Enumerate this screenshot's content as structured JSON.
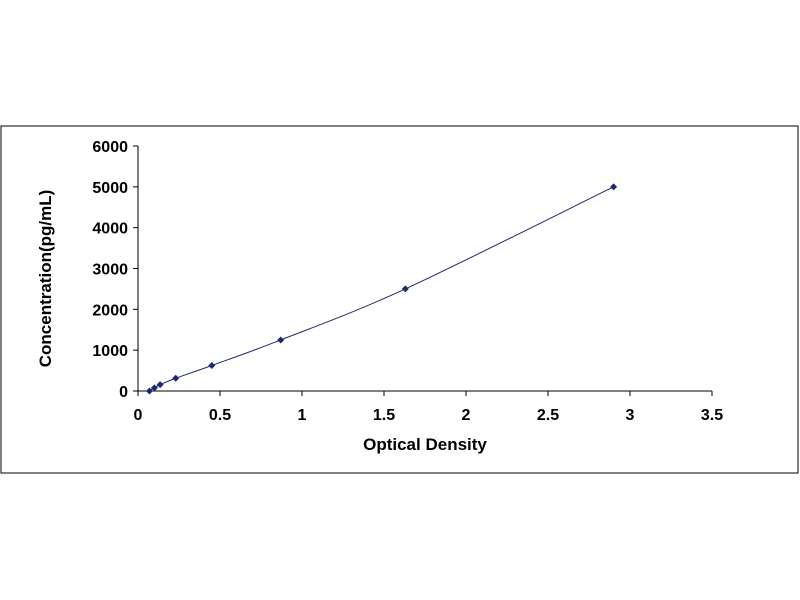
{
  "chart_data": {
    "type": "scatter",
    "title": "",
    "xlabel": "Optical Density",
    "ylabel": "Concentration(pg/mL)",
    "xlim": [
      0,
      3.5
    ],
    "ylim": [
      0,
      6000
    ],
    "x_ticks": [
      "0",
      "0.5",
      "1",
      "1.5",
      "2",
      "2.5",
      "3",
      "3.5"
    ],
    "y_ticks": [
      "0",
      "1000",
      "2000",
      "3000",
      "4000",
      "5000",
      "6000"
    ],
    "grid": false,
    "legend": "none",
    "marker": "diamond",
    "smooth_line": true,
    "series": [
      {
        "x": [
          0.07,
          0.1,
          0.135,
          0.23,
          0.45,
          0.87,
          1.63,
          2.9
        ],
        "y": [
          0,
          78,
          156,
          312,
          625,
          1250,
          2500,
          5000
        ]
      }
    ],
    "colors": {
      "marker": "#1f2a6b",
      "line": "#1f2a6b",
      "axis": "#000000",
      "frame": "#000000"
    }
  }
}
